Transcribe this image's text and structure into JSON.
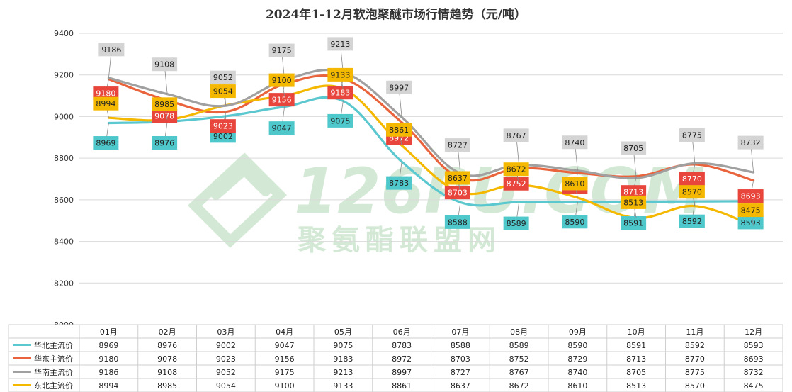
{
  "chart_data": {
    "type": "line",
    "title": "2024年1-12月软泡聚醚市场行情趋势（元/吨）",
    "categories": [
      "01月",
      "02月",
      "03月",
      "04月",
      "05月",
      "06月",
      "07月",
      "08月",
      "09月",
      "10月",
      "11月",
      "12月"
    ],
    "ylim": [
      8000,
      9400
    ],
    "yticks": [
      8000,
      8200,
      8400,
      8600,
      8800,
      9000,
      9200,
      9400
    ],
    "grid": true,
    "legend": "bottom-data-table",
    "series": [
      {
        "name": "华北主流价",
        "color": "#5bc8d0",
        "label_bg": "#4fc8cc",
        "label_color": "#222222",
        "label_side": "below",
        "values": [
          8969,
          8976,
          9002,
          9047,
          9075,
          8783,
          8588,
          8589,
          8590,
          8591,
          8592,
          8593
        ]
      },
      {
        "name": "华东主流价",
        "color": "#e9643c",
        "label_bg": "#e8453c",
        "label_color": "#ffffff",
        "label_side": "below",
        "values": [
          9180,
          9078,
          9023,
          9156,
          9183,
          8972,
          8703,
          8752,
          8729,
          8713,
          8770,
          8693
        ]
      },
      {
        "name": "华南主流价",
        "color": "#a0a0a0",
        "label_bg": "#d4d4d4",
        "label_color": "#222222",
        "label_side": "above",
        "values": [
          9186,
          9108,
          9052,
          9175,
          9213,
          8997,
          8727,
          8767,
          8740,
          8705,
          8775,
          8732
        ]
      },
      {
        "name": "东北主流价",
        "color": "#f5b800",
        "label_bg": "#f5b800",
        "label_color": "#222222",
        "label_side": "above",
        "values": [
          8994,
          8985,
          9054,
          9100,
          9133,
          8861,
          8637,
          8672,
          8610,
          8513,
          8570,
          8475
        ]
      }
    ]
  },
  "watermark": {
    "brand": "126PU.COM",
    "name": "聚氨酯联盟网"
  }
}
